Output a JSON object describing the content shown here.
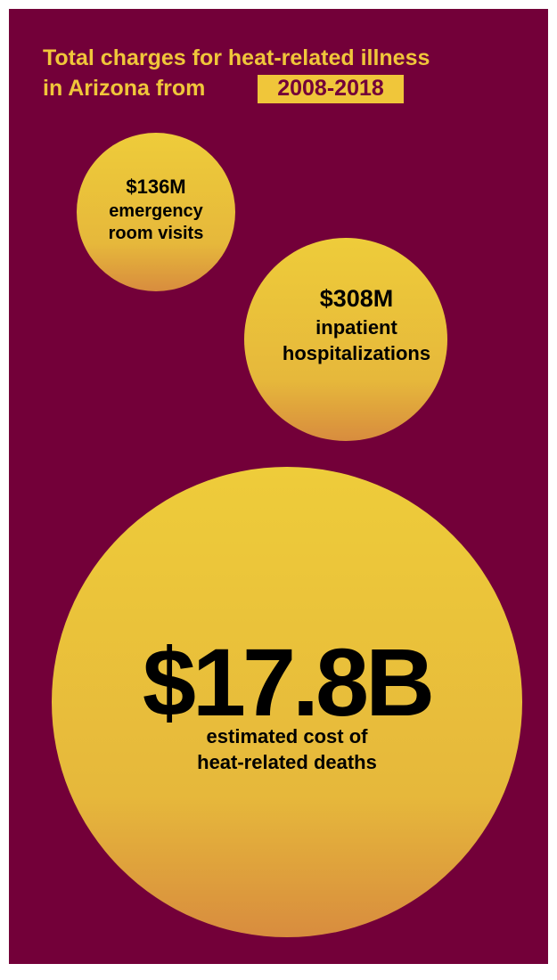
{
  "header": {
    "title_line1": "Total charges for heat-related illness",
    "title_line2": "in Arizona from",
    "title_highlight": "2008-2018"
  },
  "bubbles": [
    {
      "amount": "$136M",
      "lines": [
        "emergency",
        "room visits"
      ]
    },
    {
      "amount": "$308M",
      "lines": [
        "inpatient",
        "hospitalizations"
      ]
    },
    {
      "amount": "$17.8B",
      "lines": [
        "estimated cost of",
        "heat-related deaths"
      ]
    }
  ]
}
